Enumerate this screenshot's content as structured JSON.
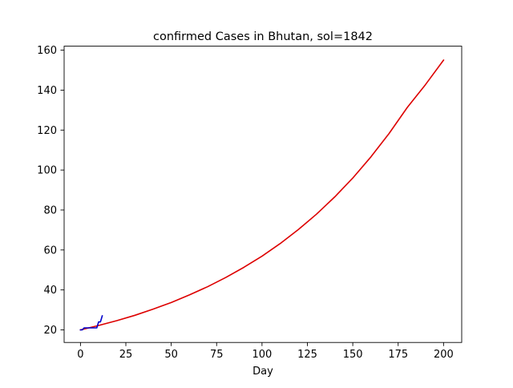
{
  "chart_data": {
    "type": "line",
    "title": "confirmed Cases in Bhutan, sol=1842",
    "xlabel": "Day",
    "ylabel": "",
    "xlim": [
      -9,
      210
    ],
    "ylim": [
      13.7,
      162
    ],
    "x_ticks": [
      0,
      25,
      50,
      75,
      100,
      125,
      150,
      175,
      200
    ],
    "y_ticks": [
      20,
      40,
      60,
      80,
      100,
      120,
      140,
      160
    ],
    "grid": false,
    "legend": "none",
    "series": [
      {
        "color": "#dd0000",
        "x": [
          0,
          10,
          20,
          30,
          40,
          50,
          60,
          70,
          80,
          90,
          100,
          110,
          120,
          130,
          140,
          150,
          160,
          170,
          180,
          190,
          200
        ],
        "y": [
          20.0,
          22.2,
          24.6,
          27.3,
          30.4,
          33.7,
          37.5,
          41.6,
          46.2,
          51.3,
          56.9,
          63.2,
          70.2,
          77.9,
          86.5,
          96.0,
          106.6,
          118.3,
          131.3,
          142.7,
          155.0
        ]
      },
      {
        "color": "#0000cc",
        "x": [
          0,
          1,
          2,
          3,
          4,
          5,
          6,
          7,
          8,
          9,
          10,
          11,
          12
        ],
        "y": [
          20,
          20,
          21,
          21,
          21,
          21,
          21,
          21,
          21,
          21,
          24,
          24,
          27
        ]
      }
    ]
  }
}
